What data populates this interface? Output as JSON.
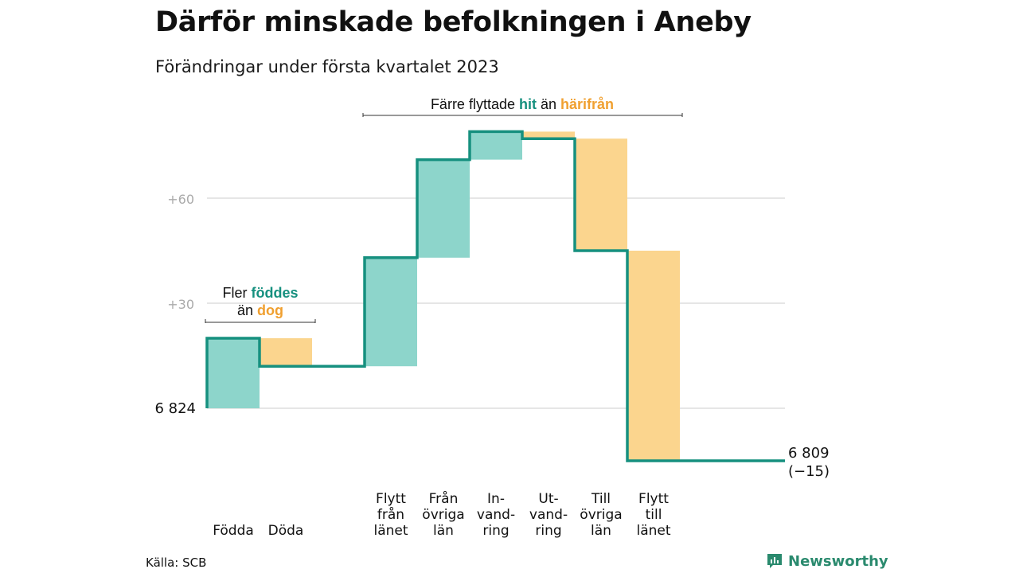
{
  "title": "Därför minskade befolkningen i Aneby",
  "subtitle": "Förändringar under första kvartalet 2023",
  "source": "Källa: SCB",
  "brand": "Newsworthy",
  "colors": {
    "increase": "#8dd5cb",
    "decrease": "#fbd58e",
    "line": "#16907f",
    "hit_text": "#16907f",
    "harifran_text": "#f0a030",
    "grid": "#dddddd",
    "tick_text": "#aaaaaa"
  },
  "chart_data": {
    "type": "waterfall",
    "start_value": 6824,
    "start_label": "6 824",
    "end_label": "6 809",
    "end_change_label": "(−15)",
    "y_ticks": [
      {
        "value": 30,
        "label": "+30"
      },
      {
        "value": 60,
        "label": "+60"
      }
    ],
    "ylim": [
      -15,
      83
    ],
    "steps": [
      {
        "label": "Födda",
        "delta": 20
      },
      {
        "label": "Döda",
        "delta": -8
      },
      {
        "label": "Flytt från länet",
        "delta": 31
      },
      {
        "label": "Från övriga län",
        "delta": 28
      },
      {
        "label": "In- vand- ring",
        "delta": 8
      },
      {
        "label": "Ut- vand- ring",
        "delta": -2
      },
      {
        "label": "Till övriga län",
        "delta": -32
      },
      {
        "label": "Flytt till länet",
        "delta": -60
      }
    ],
    "annotations": {
      "births": {
        "prefix": "Fler ",
        "highlight1": "föddes",
        "line2_prefix": "än ",
        "highlight2": "dog"
      },
      "migration": {
        "prefix": "Färre flyttade ",
        "highlight1": "hit",
        "middle": " än ",
        "highlight2": "härifrån"
      }
    }
  }
}
